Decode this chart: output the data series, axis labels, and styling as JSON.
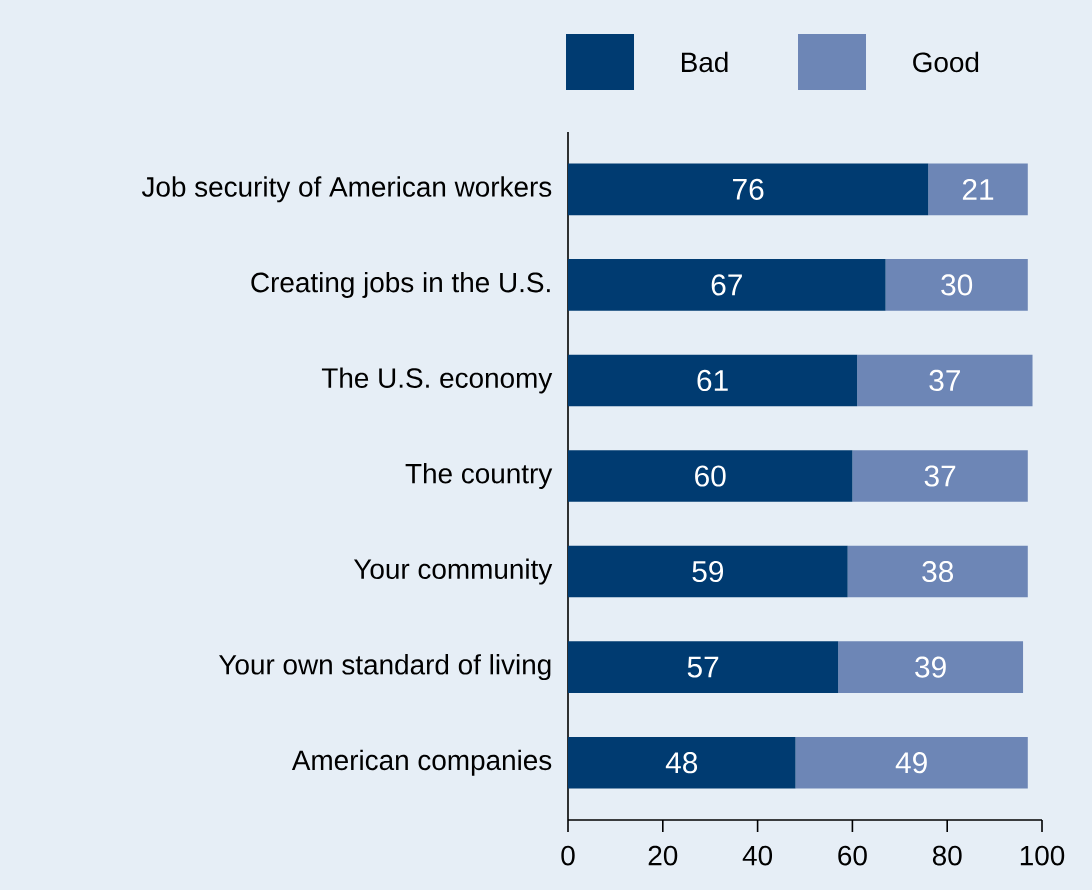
{
  "chart_data": {
    "type": "bar",
    "orientation": "horizontal",
    "stacked": true,
    "data_labels": true,
    "legend": "top",
    "grid": false,
    "categories": [
      "Job security of American workers",
      "Creating jobs in the U.S.",
      "The U.S. economy",
      "The country",
      "Your community",
      "Your own standard of living",
      "American companies"
    ],
    "series": [
      {
        "name": "Bad",
        "color": "#003b71",
        "values": [
          76,
          67,
          61,
          60,
          59,
          57,
          48
        ]
      },
      {
        "name": "Good",
        "color": "#6d86b6",
        "values": [
          21,
          30,
          37,
          37,
          38,
          39,
          49
        ]
      }
    ],
    "xlim": [
      0,
      100
    ],
    "xticks": [
      0,
      20,
      40,
      60,
      80,
      100
    ]
  }
}
